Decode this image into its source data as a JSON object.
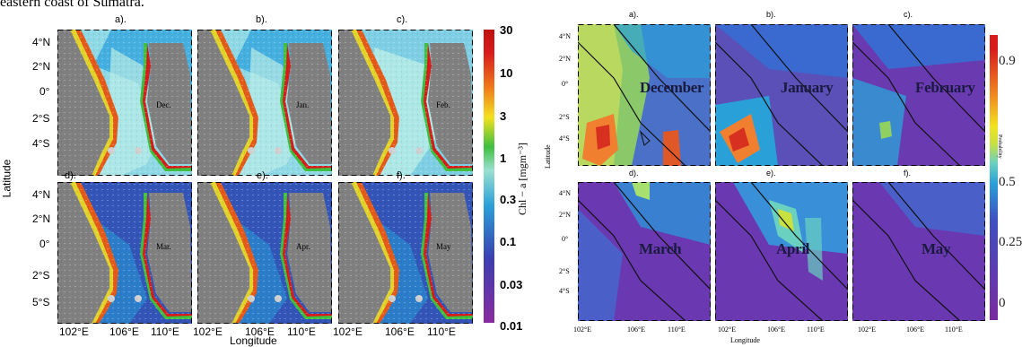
{
  "caption_fragment": "eastern coast of Sumatra.",
  "left_figure": {
    "panels": [
      {
        "label": "a).",
        "month": "Dec."
      },
      {
        "label": "b).",
        "month": "Jan."
      },
      {
        "label": "c).",
        "month": "Feb."
      },
      {
        "label": "d).",
        "month": "Mar."
      },
      {
        "label": "e).",
        "month": "Apr."
      },
      {
        "label": "f).",
        "month": "May"
      }
    ],
    "y_ticks": [
      "4°N",
      "2°N",
      "0°",
      "2°S",
      "4°S"
    ],
    "y_ticks_bottom": [
      "4°N",
      "2°N",
      "0°",
      "2°S",
      "5°S"
    ],
    "x_ticks": [
      "102°E",
      "106°E",
      "110°E"
    ],
    "ylabel": "Latitude",
    "xlabel": "Longitude",
    "colorbar": {
      "labels": [
        "30",
        "10",
        "3",
        "1",
        "0.3",
        "0.1",
        "0.03",
        "0.01"
      ],
      "title": "Chl − a [mgm⁻³]",
      "colors": [
        "#8a2aa0",
        "#3b3fb0",
        "#2aa0d8",
        "#9be0d0",
        "#3fbf3f",
        "#f2e21f",
        "#f07c1a",
        "#d81c1c"
      ]
    }
  },
  "right_figure": {
    "panels": [
      {
        "label": "a).",
        "month": "December"
      },
      {
        "label": "b).",
        "month": "January"
      },
      {
        "label": "c).",
        "month": "February"
      },
      {
        "label": "d).",
        "month": "March"
      },
      {
        "label": "e).",
        "month": "April"
      },
      {
        "label": "f).",
        "month": "May"
      }
    ],
    "y_ticks": [
      "4°N",
      "2°N",
      "0°",
      "2°S",
      "4°S"
    ],
    "x_ticks": [
      "102°E",
      "106°E",
      "110°E"
    ],
    "ylabel": "Latitude",
    "xlabel": "Longitude",
    "colorbar": {
      "labels": [
        "0.9",
        "0.5",
        "0.25",
        "0"
      ],
      "title": "Probability"
    }
  }
}
